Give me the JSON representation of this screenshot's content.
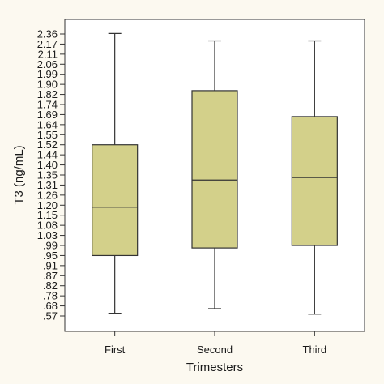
{
  "chart_data": {
    "type": "box",
    "xlabel": "Trimesters",
    "ylabel": "T3 (ng/mL)",
    "ylim": [
      0.53,
      2.45
    ],
    "grid": false,
    "y_tick_labels": [
      ".57",
      ".68",
      ".78",
      ".82",
      ".87",
      ".91",
      ".95",
      ".99",
      "1.03",
      "1.08",
      "1.15",
      "1.20",
      "1.26",
      "1.31",
      "1.35",
      "1.40",
      "1.44",
      "1.52",
      "1.55",
      "1.64",
      "1.69",
      "1.74",
      "1.82",
      "1.90",
      "1.99",
      "2.06",
      "2.11",
      "2.17",
      "2.36"
    ],
    "categories": [
      "First",
      "Second",
      "Third"
    ],
    "boxes": [
      {
        "category": "First",
        "min": 0.6,
        "q1": 0.95,
        "median": 1.19,
        "q3": 1.52,
        "max": 2.37
      },
      {
        "category": "Second",
        "min": 0.65,
        "q1": 0.98,
        "median": 1.33,
        "q3": 1.85,
        "max": 2.23
      },
      {
        "category": "Third",
        "min": 0.59,
        "q1": 0.99,
        "median": 1.34,
        "q3": 1.68,
        "max": 2.23
      }
    ],
    "colors": {
      "box_fill": "#d3d08a",
      "stroke": "#333333",
      "background": "#fcf9f0",
      "plot_bg": "#ffffff"
    }
  }
}
